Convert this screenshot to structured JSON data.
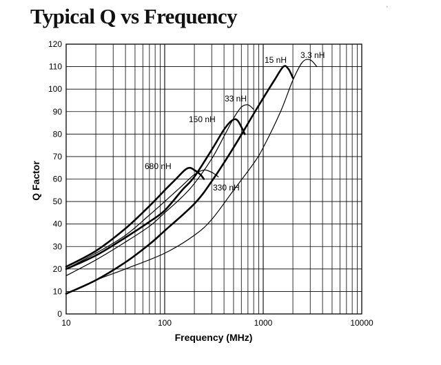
{
  "chart_data": {
    "type": "line",
    "title": "Typical Q vs Frequency",
    "xlabel": "Frequency (MHz)",
    "ylabel": "Q Factor",
    "xscale": "log",
    "xlim": [
      10,
      10000
    ],
    "ylim": [
      0,
      120
    ],
    "grid": true,
    "x_ticks": [
      10,
      100,
      1000,
      10000
    ],
    "x_tick_labels": [
      "10",
      "100",
      "1000",
      "10000"
    ],
    "y_ticks": [
      0,
      10,
      20,
      30,
      40,
      50,
      60,
      70,
      80,
      90,
      100,
      110,
      120
    ],
    "y_tick_labels": [
      "0",
      "10",
      "20",
      "30",
      "40",
      "50",
      "60",
      "70",
      "80",
      "90",
      "100",
      "110",
      "120"
    ],
    "series": [
      {
        "name": "680 nH",
        "label": "680 nH",
        "weight": "bold",
        "x": [
          10,
          20,
          40,
          70,
          100,
          130,
          160,
          180,
          200,
          230,
          250
        ],
        "y": [
          21,
          28,
          38,
          48,
          55,
          60,
          64,
          65,
          64,
          62,
          60
        ]
      },
      {
        "name": "330 nH",
        "label": "330 nH",
        "weight": "thin",
        "x": [
          10,
          20,
          40,
          70,
          100,
          150,
          200,
          250,
          300,
          350
        ],
        "y": [
          20,
          27,
          35,
          44,
          50,
          57,
          62,
          64,
          63,
          61
        ]
      },
      {
        "name": "150 nH",
        "label": "150 nH",
        "weight": "bold",
        "x": [
          10,
          20,
          40,
          70,
          100,
          150,
          200,
          300,
          400,
          480,
          550,
          650
        ],
        "y": [
          20,
          26,
          34,
          41,
          46,
          55,
          61,
          73,
          82,
          86,
          86,
          80
        ]
      },
      {
        "name": "33 nH",
        "label": "33 nH",
        "weight": "thin",
        "x": [
          10,
          20,
          40,
          70,
          100,
          150,
          200,
          300,
          400,
          500,
          600,
          700,
          800
        ],
        "y": [
          17,
          24,
          32,
          39,
          45,
          52,
          58,
          69,
          79,
          87,
          92,
          93,
          91
        ]
      },
      {
        "name": "15 nH",
        "label": "15 nH",
        "weight": "bold",
        "x": [
          10,
          20,
          40,
          70,
          100,
          200,
          300,
          500,
          800,
          1000,
          1300,
          1600,
          1800,
          2000
        ],
        "y": [
          9,
          15,
          23,
          31,
          37,
          49,
          59,
          74,
          89,
          96,
          104,
          110,
          109,
          105
        ]
      },
      {
        "name": "3.3 nH",
        "label": "3.3 nH",
        "weight": "thin",
        "x": [
          10,
          20,
          40,
          100,
          200,
          300,
          500,
          800,
          1000,
          1500,
          2000,
          2500,
          3000,
          3500
        ],
        "y": [
          9,
          15,
          20,
          27,
          35,
          42,
          55,
          67,
          74,
          90,
          104,
          112,
          113,
          110
        ]
      }
    ]
  }
}
